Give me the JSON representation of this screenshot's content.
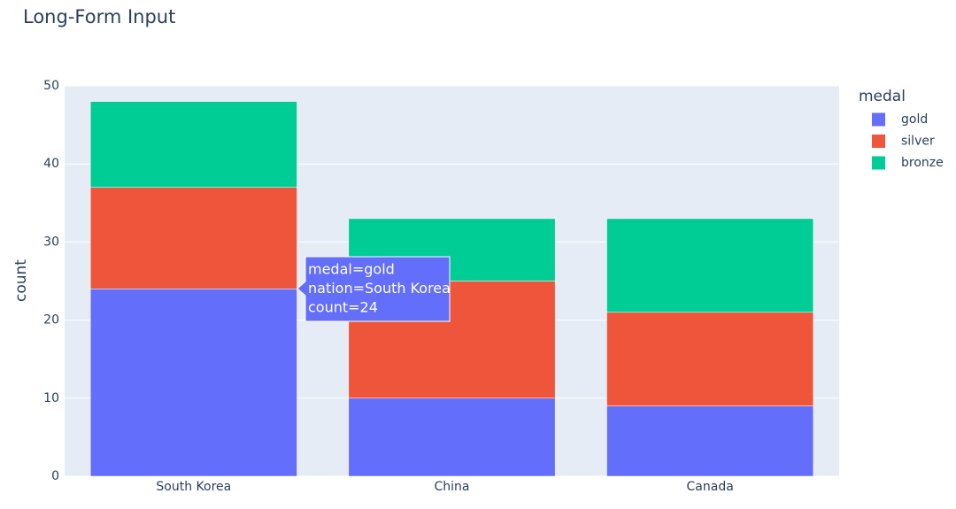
{
  "chart_data": {
    "type": "stacked-bar",
    "title": "Long-Form Input",
    "y_label": "count",
    "legend_title": "medal",
    "legend_position": "right",
    "categories": [
      "South Korea",
      "China",
      "Canada"
    ],
    "series": [
      {
        "name": "gold",
        "color": "#636efa",
        "values": [
          24,
          10,
          9
        ]
      },
      {
        "name": "silver",
        "color": "#ef553b",
        "values": [
          13,
          15,
          12
        ]
      },
      {
        "name": "bronze",
        "color": "#00cc96",
        "values": [
          11,
          8,
          12
        ]
      }
    ],
    "ylim": [
      0,
      50
    ],
    "yticks": [
      0,
      10,
      20,
      30,
      40,
      50
    ],
    "grid": true,
    "tooltip": {
      "lines": [
        "medal=gold",
        "nation=South Korea",
        "count=24"
      ]
    }
  }
}
